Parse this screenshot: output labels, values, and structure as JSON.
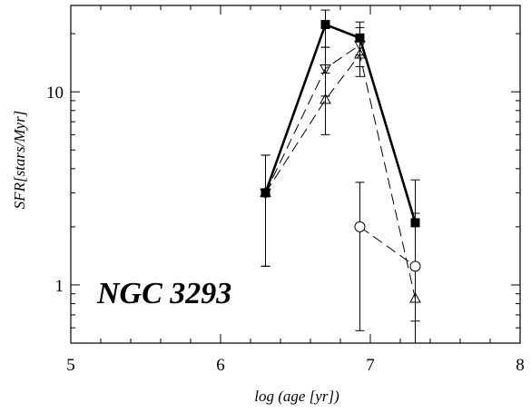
{
  "chart_data": {
    "type": "line",
    "xlabel": "log (age [yr])",
    "ylabel": "SFR[stars/Myr]",
    "annotation": "NGC 3293",
    "x_scale": "linear",
    "y_scale": "log",
    "xlim": [
      5,
      8
    ],
    "ylim": [
      0.5,
      28
    ],
    "x_ticks": [
      5,
      6,
      7,
      8
    ],
    "x_tick_labels": [
      "5",
      "6",
      "7",
      "8"
    ],
    "y_ticks": [
      1,
      10
    ],
    "y_tick_labels": [
      "1",
      "10"
    ],
    "grid": false,
    "legend": "none",
    "series": [
      {
        "marker": "filled-square",
        "line": "solid-thick",
        "color": "#000000",
        "x": [
          6.3,
          6.7,
          6.93,
          7.3
        ],
        "y": [
          3.0,
          22.3,
          19.0,
          2.1
        ],
        "y_err_low": [
          3.0,
          17.0,
          15.5,
          0.5
        ],
        "y_err_high": [
          3.0,
          26.5,
          23.0,
          3.5
        ]
      },
      {
        "marker": "open-triangle-down",
        "line": "dashed",
        "color": "#000000",
        "x": [
          6.3,
          6.7,
          6.93
        ],
        "y": [
          3.0,
          13.2,
          17.5
        ],
        "y_err_low": [
          1.25,
          9.5,
          13.5
        ],
        "y_err_high": [
          4.7,
          17.0,
          21.5
        ]
      },
      {
        "marker": "open-triangle-up",
        "line": "dashed",
        "color": "#000000",
        "x": [
          6.3,
          6.7,
          6.93,
          7.3
        ],
        "y": [
          3.0,
          9.1,
          15.6,
          0.85
        ],
        "y_err_low": [
          1.25,
          6.0,
          12.0,
          0.5
        ],
        "y_err_high": [
          4.7,
          12.5,
          19.0,
          2.2
        ]
      },
      {
        "marker": "open-circle",
        "line": "dashed",
        "color": "#000000",
        "x": [
          6.93,
          7.3
        ],
        "y": [
          2.0,
          1.25
        ],
        "y_err_low": [
          0.58,
          0.65
        ],
        "y_err_high": [
          3.4,
          2.35
        ]
      }
    ]
  }
}
